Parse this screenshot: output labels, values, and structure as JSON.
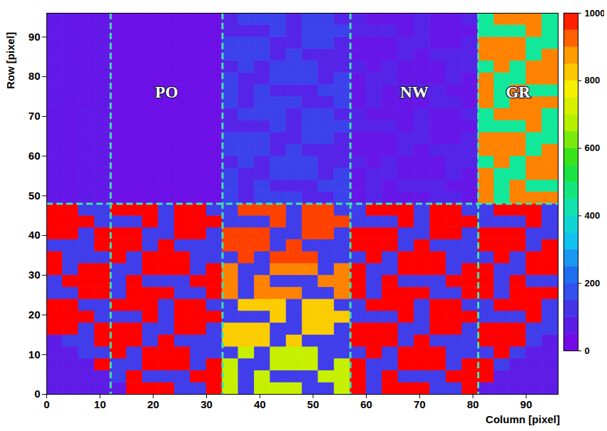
{
  "chart_data": {
    "type": "heatmap",
    "xlabel": "Column [pixel]",
    "ylabel": "Row [pixel]",
    "xlim": [
      0,
      96
    ],
    "xticks": [
      0,
      10,
      20,
      30,
      40,
      50,
      60,
      70,
      80,
      90
    ],
    "ylim": [
      0,
      96
    ],
    "yticks": [
      0,
      10,
      20,
      30,
      40,
      50,
      60,
      70,
      80,
      90
    ],
    "colorbar_range": [
      0,
      1000
    ],
    "colorbar_ticks": [
      0,
      200,
      400,
      600,
      800,
      1000
    ],
    "dividers_x": [
      12,
      33,
      57,
      81
    ],
    "dividers_y": [
      48
    ],
    "annotations": [
      {
        "text": "PO",
        "x": 22.5,
        "y": 76
      },
      {
        "text": "NW",
        "x": 69,
        "y": 76
      },
      {
        "text": "GR",
        "x": 88.5,
        "y": 76
      }
    ],
    "cell_x": [
      0,
      3,
      6,
      9,
      12,
      15,
      18,
      21,
      24,
      27,
      30,
      33,
      36,
      39,
      42,
      45,
      48,
      51,
      54,
      57,
      60,
      63,
      66,
      69,
      72,
      75,
      78,
      81,
      84,
      87,
      90,
      93
    ],
    "cell_y": [
      0,
      3,
      6,
      9,
      12,
      15,
      18,
      21,
      24,
      27,
      30,
      33,
      36,
      39,
      42,
      45,
      48,
      51,
      54,
      57,
      60,
      63,
      66,
      69,
      72,
      75,
      78,
      81,
      84,
      87,
      90,
      93
    ],
    "z": [
      [
        70,
        70,
        70,
        70,
        70,
        1000,
        1000,
        1000,
        140,
        140,
        1000,
        700,
        140,
        700,
        700,
        700,
        140,
        140,
        700,
        1000,
        140,
        1000,
        1000,
        1000,
        140,
        140,
        1000,
        70,
        70,
        70,
        70,
        70
      ],
      [
        70,
        70,
        70,
        70,
        140,
        1000,
        140,
        140,
        140,
        1000,
        1000,
        700,
        140,
        700,
        140,
        140,
        140,
        700,
        700,
        1000,
        140,
        1000,
        140,
        140,
        140,
        1000,
        1000,
        1000,
        70,
        70,
        70,
        70
      ],
      [
        70,
        70,
        70,
        1000,
        140,
        140,
        1000,
        1000,
        1000,
        140,
        1000,
        700,
        140,
        140,
        700,
        700,
        700,
        140,
        700,
        1000,
        140,
        140,
        1000,
        1000,
        1000,
        140,
        1000,
        1000,
        140,
        70,
        70,
        70
      ],
      [
        70,
        70,
        140,
        140,
        1000,
        140,
        1000,
        1000,
        1000,
        140,
        140,
        140,
        700,
        140,
        700,
        700,
        700,
        140,
        140,
        140,
        1000,
        140,
        1000,
        1000,
        1000,
        140,
        140,
        140,
        1000,
        140,
        70,
        70
      ],
      [
        70,
        140,
        140,
        1000,
        1000,
        1000,
        140,
        1000,
        140,
        140,
        140,
        820,
        820,
        820,
        140,
        820,
        140,
        140,
        140,
        1000,
        1000,
        1000,
        140,
        1000,
        140,
        140,
        140,
        1000,
        1000,
        1000,
        140,
        70
      ],
      [
        1000,
        1000,
        140,
        1000,
        1000,
        1000,
        140,
        140,
        1000,
        1000,
        140,
        820,
        820,
        820,
        140,
        140,
        820,
        820,
        140,
        1000,
        1000,
        1000,
        140,
        140,
        1000,
        1000,
        140,
        1000,
        1000,
        1000,
        140,
        140
      ],
      [
        1000,
        1000,
        1000,
        140,
        140,
        140,
        1000,
        140,
        1000,
        1000,
        1000,
        140,
        140,
        140,
        820,
        140,
        820,
        820,
        820,
        140,
        140,
        140,
        1000,
        140,
        1000,
        1000,
        1000,
        140,
        140,
        140,
        1000,
        140
      ],
      [
        1000,
        1000,
        140,
        140,
        1000,
        1000,
        1000,
        140,
        1000,
        1000,
        140,
        140,
        820,
        820,
        820,
        140,
        820,
        820,
        140,
        140,
        1000,
        1000,
        1000,
        140,
        1000,
        1000,
        140,
        140,
        1000,
        1000,
        1000,
        140
      ],
      [
        140,
        140,
        1000,
        1000,
        140,
        1000,
        1000,
        1000,
        140,
        140,
        1000,
        900,
        140,
        900,
        900,
        900,
        140,
        140,
        900,
        1000,
        140,
        1000,
        1000,
        1000,
        140,
        140,
        1000,
        1000,
        140,
        1000,
        1000,
        1000
      ],
      [
        140,
        1000,
        1000,
        1000,
        140,
        1000,
        140,
        140,
        140,
        1000,
        1000,
        900,
        140,
        900,
        140,
        140,
        140,
        900,
        900,
        1000,
        140,
        1000,
        140,
        140,
        140,
        1000,
        1000,
        1000,
        140,
        1000,
        140,
        140
      ],
      [
        1000,
        140,
        1000,
        1000,
        140,
        140,
        1000,
        1000,
        1000,
        140,
        1000,
        900,
        140,
        140,
        900,
        900,
        900,
        140,
        900,
        1000,
        140,
        140,
        1000,
        1000,
        1000,
        140,
        1000,
        1000,
        140,
        140,
        1000,
        1000
      ],
      [
        1000,
        140,
        140,
        140,
        1000,
        140,
        1000,
        1000,
        1000,
        140,
        140,
        140,
        950,
        140,
        950,
        950,
        950,
        140,
        140,
        140,
        1000,
        140,
        1000,
        1000,
        1000,
        140,
        140,
        140,
        1000,
        140,
        1000,
        1000
      ],
      [
        140,
        140,
        140,
        1000,
        1000,
        1000,
        140,
        1000,
        140,
        140,
        140,
        950,
        950,
        950,
        140,
        950,
        140,
        140,
        140,
        1000,
        1000,
        1000,
        140,
        1000,
        140,
        140,
        140,
        1000,
        1000,
        1000,
        140,
        1000
      ],
      [
        1000,
        1000,
        140,
        1000,
        1000,
        1000,
        140,
        140,
        1000,
        1000,
        140,
        950,
        950,
        950,
        140,
        140,
        950,
        950,
        140,
        1000,
        1000,
        1000,
        140,
        140,
        1000,
        1000,
        140,
        1000,
        1000,
        1000,
        140,
        140
      ],
      [
        1000,
        1000,
        1000,
        140,
        140,
        140,
        1000,
        140,
        1000,
        1000,
        1000,
        140,
        140,
        140,
        950,
        140,
        950,
        950,
        950,
        140,
        140,
        140,
        1000,
        140,
        1000,
        1000,
        1000,
        140,
        140,
        140,
        1000,
        140
      ],
      [
        1000,
        1000,
        140,
        140,
        1000,
        1000,
        1000,
        140,
        1000,
        1000,
        140,
        140,
        950,
        950,
        950,
        140,
        950,
        950,
        140,
        140,
        1000,
        1000,
        1000,
        140,
        1000,
        1000,
        140,
        140,
        1000,
        1000,
        1000,
        140
      ],
      [
        60,
        55,
        65,
        60,
        40,
        40,
        40,
        40,
        40,
        40,
        40,
        150,
        90,
        150,
        150,
        150,
        90,
        90,
        150,
        55,
        90,
        55,
        55,
        55,
        90,
        90,
        55,
        900,
        450,
        900,
        900,
        900
      ],
      [
        60,
        55,
        65,
        60,
        40,
        40,
        40,
        40,
        40,
        40,
        40,
        150,
        90,
        150,
        90,
        90,
        90,
        150,
        150,
        55,
        90,
        55,
        90,
        90,
        90,
        55,
        55,
        900,
        450,
        900,
        450,
        450
      ],
      [
        60,
        55,
        65,
        60,
        40,
        40,
        40,
        40,
        40,
        40,
        40,
        150,
        90,
        90,
        150,
        150,
        150,
        90,
        150,
        55,
        90,
        90,
        55,
        55,
        55,
        90,
        55,
        900,
        450,
        450,
        900,
        900
      ],
      [
        60,
        55,
        65,
        60,
        40,
        40,
        40,
        40,
        40,
        40,
        40,
        90,
        150,
        90,
        150,
        150,
        150,
        90,
        90,
        90,
        55,
        90,
        55,
        55,
        55,
        90,
        90,
        450,
        900,
        450,
        900,
        900
      ],
      [
        60,
        55,
        65,
        60,
        40,
        40,
        40,
        40,
        40,
        40,
        40,
        150,
        150,
        150,
        90,
        150,
        90,
        90,
        90,
        55,
        55,
        55,
        90,
        55,
        90,
        90,
        90,
        900,
        900,
        900,
        450,
        900
      ],
      [
        60,
        55,
        65,
        60,
        40,
        40,
        40,
        40,
        40,
        40,
        40,
        150,
        150,
        150,
        90,
        90,
        150,
        150,
        90,
        55,
        55,
        55,
        90,
        90,
        55,
        55,
        90,
        900,
        900,
        900,
        450,
        450
      ],
      [
        60,
        55,
        65,
        60,
        40,
        40,
        40,
        40,
        40,
        40,
        40,
        90,
        90,
        90,
        150,
        90,
        150,
        150,
        150,
        90,
        90,
        90,
        55,
        90,
        55,
        55,
        55,
        450,
        450,
        450,
        900,
        450
      ],
      [
        60,
        55,
        65,
        60,
        40,
        40,
        40,
        40,
        40,
        40,
        40,
        90,
        150,
        150,
        150,
        90,
        150,
        150,
        90,
        90,
        55,
        55,
        55,
        90,
        55,
        55,
        90,
        450,
        900,
        900,
        900,
        450
      ],
      [
        65,
        60,
        55,
        60,
        40,
        40,
        40,
        40,
        40,
        40,
        40,
        150,
        90,
        150,
        150,
        150,
        90,
        90,
        150,
        55,
        90,
        55,
        55,
        55,
        90,
        90,
        55,
        900,
        450,
        900,
        900,
        900
      ],
      [
        65,
        60,
        55,
        60,
        40,
        40,
        40,
        40,
        40,
        40,
        40,
        150,
        90,
        150,
        90,
        90,
        90,
        150,
        150,
        55,
        90,
        55,
        90,
        90,
        90,
        55,
        55,
        900,
        450,
        900,
        450,
        450
      ],
      [
        65,
        60,
        55,
        60,
        40,
        40,
        40,
        40,
        40,
        40,
        40,
        150,
        90,
        90,
        150,
        150,
        150,
        90,
        150,
        55,
        90,
        90,
        55,
        55,
        55,
        90,
        55,
        900,
        450,
        450,
        900,
        900
      ],
      [
        65,
        60,
        55,
        60,
        40,
        40,
        40,
        40,
        40,
        40,
        40,
        90,
        150,
        90,
        150,
        150,
        150,
        90,
        90,
        90,
        55,
        90,
        55,
        55,
        55,
        90,
        90,
        450,
        900,
        450,
        900,
        900
      ],
      [
        65,
        60,
        55,
        60,
        40,
        40,
        40,
        40,
        40,
        40,
        40,
        150,
        150,
        150,
        90,
        150,
        90,
        90,
        90,
        55,
        55,
        55,
        90,
        55,
        90,
        90,
        90,
        900,
        900,
        900,
        450,
        900
      ],
      [
        65,
        60,
        55,
        60,
        40,
        40,
        40,
        40,
        40,
        40,
        40,
        150,
        150,
        150,
        90,
        90,
        150,
        150,
        90,
        55,
        55,
        55,
        90,
        90,
        55,
        55,
        90,
        900,
        900,
        900,
        450,
        450
      ],
      [
        65,
        60,
        55,
        60,
        40,
        40,
        40,
        40,
        40,
        40,
        40,
        90,
        90,
        90,
        150,
        90,
        150,
        150,
        150,
        90,
        90,
        90,
        55,
        90,
        55,
        55,
        55,
        450,
        450,
        450,
        900,
        450
      ],
      [
        65,
        60,
        55,
        60,
        40,
        40,
        40,
        40,
        40,
        40,
        40,
        90,
        150,
        150,
        150,
        90,
        150,
        150,
        90,
        90,
        55,
        55,
        55,
        90,
        55,
        55,
        90,
        450,
        900,
        900,
        900,
        450
      ]
    ]
  }
}
